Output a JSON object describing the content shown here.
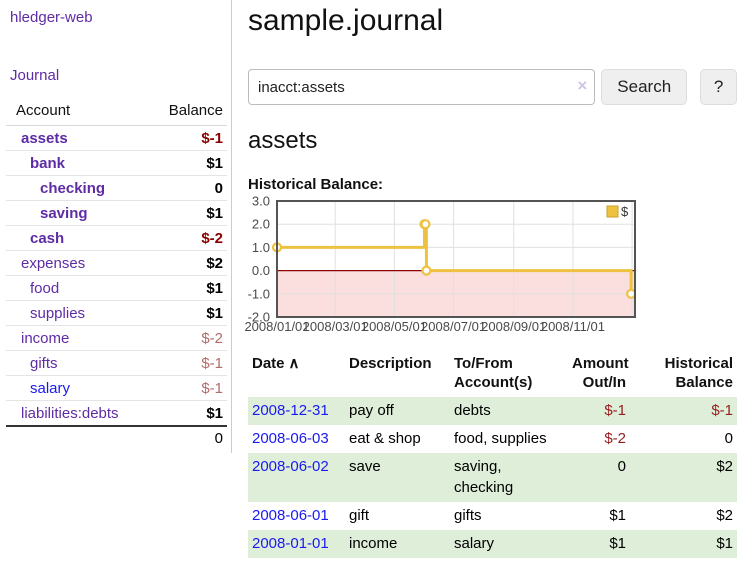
{
  "app": {
    "brand": "hledger-web",
    "nav_journal": "Journal"
  },
  "sidebar": {
    "headers": {
      "account": "Account",
      "balance": "Balance"
    },
    "accounts": [
      {
        "name": "assets",
        "depth": 0,
        "balance": "$-1",
        "bold": true,
        "neg": "strong"
      },
      {
        "name": "bank",
        "depth": 1,
        "balance": "$1",
        "bold": true,
        "neg": "none"
      },
      {
        "name": "checking",
        "depth": 2,
        "balance": "0",
        "bold": true,
        "neg": "none"
      },
      {
        "name": "saving",
        "depth": 2,
        "balance": "$1",
        "bold": true,
        "neg": "none"
      },
      {
        "name": "cash",
        "depth": 1,
        "balance": "$-2",
        "bold": true,
        "neg": "strong"
      },
      {
        "name": "expenses",
        "depth": 0,
        "balance": "$2",
        "bold": false,
        "neg": "none"
      },
      {
        "name": "food",
        "depth": 1,
        "balance": "$1",
        "bold": false,
        "neg": "none"
      },
      {
        "name": "supplies",
        "depth": 1,
        "balance": "$1",
        "bold": false,
        "neg": "none"
      },
      {
        "name": "income",
        "depth": 0,
        "balance": "$-2",
        "bold": false,
        "neg": "soft"
      },
      {
        "name": "gifts",
        "depth": 1,
        "balance": "$-1",
        "bold": false,
        "neg": "soft"
      },
      {
        "name": "salary",
        "depth": 1,
        "balance": "$-1",
        "bold": false,
        "neg": "soft",
        "link_style": "unvisited"
      },
      {
        "name": "liabilities:debts",
        "depth": 0,
        "balance": "$1",
        "bold": false,
        "neg": "none"
      }
    ],
    "total": "0"
  },
  "header": {
    "title": "sample.journal"
  },
  "search": {
    "query": "inacct:assets",
    "clear_icon": "×",
    "button": "Search",
    "help_button": "?"
  },
  "account_page": {
    "heading": "assets",
    "chart_label": "Historical Balance:"
  },
  "chart_data": {
    "type": "line",
    "style": "step-after",
    "title": "Historical Balance",
    "xlabel": "",
    "ylabel": "",
    "x_domain": [
      "2008-01-01",
      "2009-01-04"
    ],
    "ylim": [
      -2.0,
      3.0
    ],
    "y_ticks": [
      {
        "v": 3,
        "label": "3.0"
      },
      {
        "v": 2,
        "label": "2.0"
      },
      {
        "v": 1,
        "label": "1.0"
      },
      {
        "v": 0,
        "label": "0.0"
      },
      {
        "v": -1,
        "label": "-1.0"
      },
      {
        "v": -2,
        "label": "-2.0"
      }
    ],
    "x_ticks": [
      {
        "date": "2008-01-01",
        "label": "2008/01/01"
      },
      {
        "date": "2008-03-01",
        "label": "2008/03/01"
      },
      {
        "date": "2008-05-01",
        "label": "2008/05/01"
      },
      {
        "date": "2008-07-01",
        "label": "2008/07/01"
      },
      {
        "date": "2008-09-01",
        "label": "2008/09/01"
      },
      {
        "date": "2008-11-01",
        "label": "2008/11/01"
      }
    ],
    "x_gridlines_extra": [
      "2009-01-01"
    ],
    "grid": true,
    "legend_position": "top-right",
    "series": [
      {
        "name": "$",
        "points": [
          {
            "x": "2008-01-01",
            "y": 1
          },
          {
            "x": "2008-06-01",
            "y": 2
          },
          {
            "x": "2008-06-02",
            "y": 2
          },
          {
            "x": "2008-06-03",
            "y": 0
          },
          {
            "x": "2008-12-31",
            "y": -1
          }
        ]
      }
    ]
  },
  "register": {
    "columns": [
      {
        "label": "Date"
      },
      {
        "label": "Description"
      },
      {
        "label": "To/From Account(s)"
      },
      {
        "label": "Amount Out/In"
      },
      {
        "label": "Historical Balance"
      }
    ],
    "sort_icon": "∧",
    "rows": [
      {
        "date": "2008-12-31",
        "description": "pay off",
        "accounts": "debts",
        "amount": "$-1",
        "balance": "$-1"
      },
      {
        "date": "2008-06-03",
        "description": "eat & shop",
        "accounts": "food, supplies",
        "amount": "$-2",
        "balance": "0"
      },
      {
        "date": "2008-06-02",
        "description": "save",
        "accounts": "saving, checking",
        "amount": "0",
        "balance": "$2"
      },
      {
        "date": "2008-06-01",
        "description": "gift",
        "accounts": "gifts",
        "amount": "$1",
        "balance": "$2"
      },
      {
        "date": "2008-01-01",
        "description": "income",
        "accounts": "salary",
        "amount": "$1",
        "balance": "$1"
      }
    ]
  },
  "colors": {
    "accent_purple": "#5e2ca5",
    "link_blue": "#1a1aee",
    "negative_strong": "#8b0000",
    "negative_soft": "#b36b6b",
    "negative_table": "#941f1f",
    "row_green": "#dfeed9",
    "chart_line": "#edc240",
    "chart_marker_fill": "#ffffff",
    "chart_negative_fill": "#fbdfdf",
    "chart_zero_line": "#8b0000",
    "chart_grid": "#e0e0e0",
    "chart_border": "#545454",
    "chart_text": "#4a4a4a"
  }
}
